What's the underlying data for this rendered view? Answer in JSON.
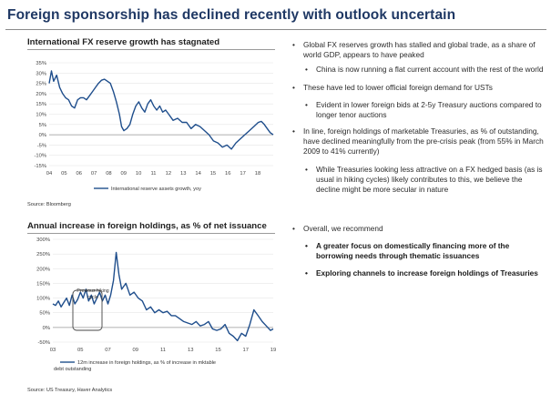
{
  "title": "Foreign sponsorship has declined recently with outlook uncertain",
  "chart_data": [
    {
      "type": "line",
      "title": "International FX reserve growth has stagnated",
      "yticks": [
        "35%",
        "30%",
        "25%",
        "20%",
        "15%",
        "10%",
        "5%",
        "0%",
        "-5%",
        "-10%",
        "-15%"
      ],
      "ylim": [
        -15,
        35
      ],
      "xticks": [
        "04",
        "05",
        "06",
        "07",
        "08",
        "09",
        "10",
        "11",
        "12",
        "13",
        "14",
        "15",
        "16",
        "17",
        "18"
      ],
      "xlim": [
        2004,
        2019
      ],
      "series": [
        {
          "name": "International reserve assets growth, yoy",
          "color": "#1f4e8c",
          "x": [
            2004.0,
            2004.15,
            2004.3,
            2004.5,
            2004.7,
            2004.9,
            2005.1,
            2005.3,
            2005.5,
            2005.7,
            2005.9,
            2006.1,
            2006.3,
            2006.5,
            2006.7,
            2006.9,
            2007.1,
            2007.3,
            2007.5,
            2007.7,
            2007.9,
            2008.1,
            2008.3,
            2008.5,
            2008.7,
            2008.85,
            2009.0,
            2009.2,
            2009.4,
            2009.6,
            2009.8,
            2010.0,
            2010.2,
            2010.4,
            2010.6,
            2010.8,
            2011.0,
            2011.2,
            2011.4,
            2011.6,
            2011.8,
            2012.0,
            2012.3,
            2012.6,
            2012.9,
            2013.2,
            2013.5,
            2013.8,
            2014.1,
            2014.4,
            2014.7,
            2015.0,
            2015.3,
            2015.6,
            2015.9,
            2016.2,
            2016.5,
            2016.8,
            2017.1,
            2017.4,
            2017.7,
            2018.0,
            2018.2,
            2018.4,
            2018.6,
            2018.8,
            2019.0
          ],
          "values": [
            25,
            31,
            26,
            29,
            23,
            20,
            18,
            17,
            14,
            13,
            17,
            18,
            18,
            17,
            19,
            21,
            23,
            25,
            26.5,
            27,
            26,
            25,
            21,
            16,
            10,
            4,
            2,
            3,
            5,
            10,
            14,
            16,
            13,
            11,
            15,
            17,
            14,
            12,
            14,
            11,
            12,
            10,
            7,
            8,
            6,
            6,
            3,
            5,
            4,
            2,
            0,
            -3,
            -4,
            -6,
            -5,
            -7,
            -4,
            -2,
            0,
            2,
            4,
            6,
            6.5,
            5,
            3,
            1,
            0
          ]
        }
      ],
      "source": "Source: Bloomberg"
    },
    {
      "type": "line",
      "title": "Annual increase in foreign holdings, as % of net issuance",
      "yticks": [
        "300%",
        "250%",
        "200%",
        "150%",
        "100%",
        "50%",
        "0%",
        "-50%"
      ],
      "ylim": [
        -50,
        300
      ],
      "xticks": [
        "03",
        "05",
        "07",
        "09",
        "11",
        "13",
        "15",
        "17",
        "19"
      ],
      "xlim": [
        2003,
        2019
      ],
      "annotation": "Previous hiking cycle",
      "series": [
        {
          "name": "12m increase in foreign holdings, as % of increase in mktable debt outstanding",
          "color": "#1f4e8c",
          "x": [
            2003.0,
            2003.2,
            2003.4,
            2003.6,
            2003.8,
            2004.0,
            2004.2,
            2004.4,
            2004.6,
            2004.8,
            2005.0,
            2005.2,
            2005.4,
            2005.6,
            2005.8,
            2006.0,
            2006.2,
            2006.4,
            2006.6,
            2006.8,
            2007.0,
            2007.2,
            2007.4,
            2007.6,
            2007.8,
            2008.0,
            2008.3,
            2008.6,
            2008.9,
            2009.2,
            2009.5,
            2009.8,
            2010.1,
            2010.4,
            2010.7,
            2011.0,
            2011.3,
            2011.6,
            2011.9,
            2012.2,
            2012.5,
            2012.8,
            2013.1,
            2013.4,
            2013.7,
            2014.0,
            2014.3,
            2014.6,
            2014.9,
            2015.2,
            2015.5,
            2015.8,
            2016.1,
            2016.4,
            2016.7,
            2017.0,
            2017.3,
            2017.6,
            2017.9,
            2018.2,
            2018.5,
            2018.8,
            2019.0
          ],
          "values": [
            80,
            75,
            90,
            70,
            85,
            100,
            75,
            110,
            80,
            95,
            120,
            100,
            130,
            90,
            110,
            80,
            100,
            120,
            90,
            110,
            80,
            110,
            160,
            255,
            180,
            130,
            150,
            110,
            120,
            100,
            90,
            60,
            70,
            50,
            60,
            50,
            55,
            40,
            40,
            30,
            20,
            15,
            10,
            20,
            5,
            10,
            20,
            -5,
            -10,
            -5,
            10,
            -20,
            -30,
            -45,
            -20,
            -30,
            10,
            60,
            40,
            20,
            5,
            -10,
            -5
          ]
        }
      ],
      "source": "Source: US Treasury, Haver Analytics"
    }
  ],
  "bullets": [
    {
      "level": 1,
      "text": "Global FX reserves growth has stalled and global trade, as a share of world GDP, appears to have peaked",
      "bold": false
    },
    {
      "level": 2,
      "text": "China is now running a flat current account with the rest of the world",
      "bold": false
    },
    {
      "level": 1,
      "text": "These have led to lower official foreign demand for USTs",
      "bold": false
    },
    {
      "level": 2,
      "text": "Evident in lower foreign bids at 2-5y Treasury auctions compared to longer tenor auctions",
      "bold": false
    },
    {
      "level": 1,
      "text": "In line, foreign holdings of marketable Treasuries, as % of outstanding, have declined meaningfully from the pre-crisis peak (from 55% in March 2009 to 41% currently)",
      "bold": false
    },
    {
      "level": 2,
      "text": "While Treasuries looking less attractive on a FX hedged basis (as is usual in hiking cycles) likely contributes to this, we believe the decline might be more secular in nature",
      "bold": false
    },
    {
      "level": 1,
      "text": "Overall, we recommend",
      "bold": false
    },
    {
      "level": 2,
      "text": "A greater focus on domestically financing more of the borrowing needs through thematic issuances",
      "bold": true
    },
    {
      "level": 2,
      "text": "Exploring channels to increase foreign holdings of Treasuries",
      "bold": true
    }
  ]
}
